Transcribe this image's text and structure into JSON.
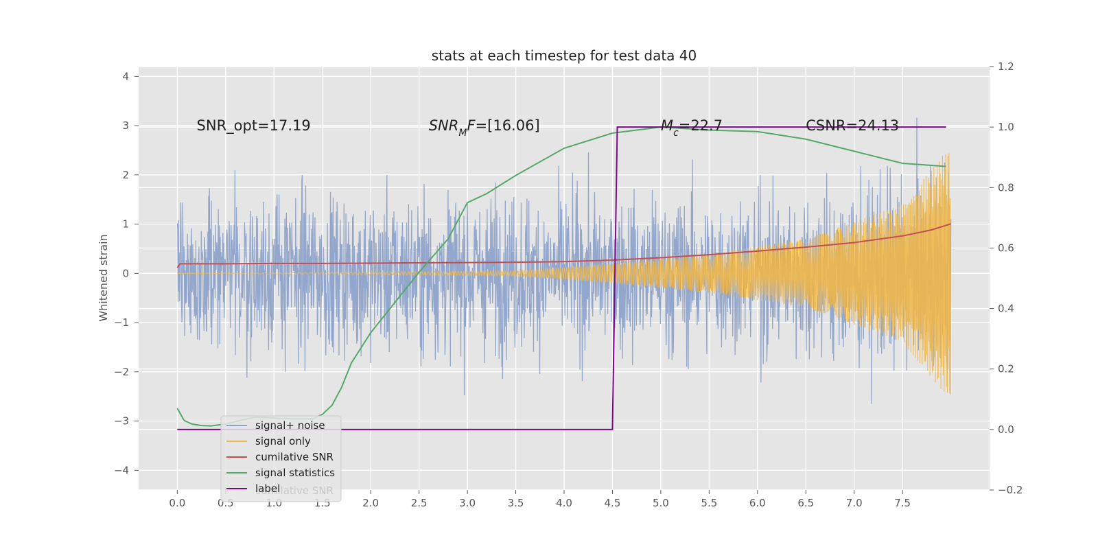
{
  "chart_data": {
    "type": "line",
    "title": "stats at each timestep for test data 40",
    "xlabel": "",
    "ylabel": "Whitened strain",
    "xlim": [
      -0.4,
      8.4
    ],
    "ylim": [
      -4.4,
      4.2
    ],
    "y2lim": [
      -0.2,
      1.2
    ],
    "xticks": [
      "0.0",
      "0.5",
      "1.0",
      "1.5",
      "2.0",
      "2.5",
      "3.0",
      "3.5",
      "4.0",
      "4.5",
      "5.0",
      "5.5",
      "6.0",
      "6.5",
      "7.0",
      "7.5"
    ],
    "yticks": [
      "4",
      "3",
      "2",
      "1",
      "0",
      "−1",
      "−2",
      "−3",
      "−4"
    ],
    "y2ticks": [
      "1.2",
      "1.0",
      "0.8",
      "0.6",
      "0.4",
      "0.2",
      "0.0",
      "−0.2"
    ],
    "grid": true,
    "legend_position": "lower-left",
    "annotations": [
      {
        "text": "SNR_opt=17.19",
        "x": 0.2,
        "y": 3.0
      },
      {
        "text": "SNR_MF=[16.06]",
        "x": 2.6,
        "y": 3.0
      },
      {
        "text": "M_c=22.7",
        "x": 5.0,
        "y": 3.0
      },
      {
        "text": "CSNR=24.13",
        "x": 6.5,
        "y": 3.0
      }
    ],
    "series": [
      {
        "name": "signal+ noise",
        "axis": "left",
        "color": "#8ea2c9",
        "kind": "noise",
        "x_start": 0.0,
        "x_end": 8.0,
        "amplitude": 1.1
      },
      {
        "name": "signal only",
        "axis": "left",
        "color": "#f0b74a",
        "kind": "chirp",
        "x_start": 0.0,
        "x_end": 8.0,
        "envelope": [
          [
            0.0,
            0.0
          ],
          [
            3.5,
            0.05
          ],
          [
            4.5,
            0.2
          ],
          [
            5.5,
            0.4
          ],
          [
            6.5,
            0.7
          ],
          [
            7.5,
            1.4
          ],
          [
            8.0,
            2.6
          ]
        ]
      },
      {
        "name": "cumilative SNR",
        "axis": "right",
        "color": "#c44e52",
        "points": [
          [
            0.0,
            0.535
          ],
          [
            0.03,
            0.548
          ],
          [
            0.5,
            0.548
          ],
          [
            1.0,
            0.549
          ],
          [
            1.5,
            0.549
          ],
          [
            2.0,
            0.55
          ],
          [
            2.5,
            0.551
          ],
          [
            3.0,
            0.552
          ],
          [
            3.5,
            0.553
          ],
          [
            4.0,
            0.555
          ],
          [
            4.5,
            0.56
          ],
          [
            5.0,
            0.568
          ],
          [
            5.5,
            0.578
          ],
          [
            6.0,
            0.59
          ],
          [
            6.5,
            0.603
          ],
          [
            7.0,
            0.618
          ],
          [
            7.5,
            0.64
          ],
          [
            7.8,
            0.66
          ],
          [
            8.0,
            0.68
          ]
        ]
      },
      {
        "name": "signal statistics",
        "axis": "right",
        "color": "#55a868",
        "points": [
          [
            0.0,
            0.07
          ],
          [
            0.07,
            0.03
          ],
          [
            0.15,
            0.018
          ],
          [
            0.25,
            0.013
          ],
          [
            0.35,
            0.012
          ],
          [
            0.5,
            0.018
          ],
          [
            0.65,
            0.03
          ],
          [
            0.8,
            0.04
          ],
          [
            0.9,
            0.04
          ],
          [
            1.0,
            0.038
          ],
          [
            1.2,
            0.035
          ],
          [
            1.4,
            0.035
          ],
          [
            1.5,
            0.05
          ],
          [
            1.6,
            0.08
          ],
          [
            1.7,
            0.14
          ],
          [
            1.8,
            0.22
          ],
          [
            2.0,
            0.32
          ],
          [
            2.2,
            0.4
          ],
          [
            2.5,
            0.52
          ],
          [
            2.8,
            0.63
          ],
          [
            3.0,
            0.75
          ],
          [
            3.2,
            0.78
          ],
          [
            3.5,
            0.84
          ],
          [
            4.0,
            0.93
          ],
          [
            4.5,
            0.98
          ],
          [
            5.0,
            1.0
          ],
          [
            5.5,
            0.99
          ],
          [
            6.0,
            0.985
          ],
          [
            6.5,
            0.96
          ],
          [
            7.0,
            0.92
          ],
          [
            7.5,
            0.88
          ],
          [
            7.95,
            0.87
          ]
        ]
      },
      {
        "name": "label",
        "axis": "right",
        "color": "#7b0a8a",
        "points": [
          [
            0.0,
            0.0
          ],
          [
            4.5,
            0.0
          ],
          [
            4.55,
            1.0
          ],
          [
            7.95,
            1.0
          ]
        ]
      }
    ]
  },
  "legend": {
    "hidden_text": "cumilative SNR"
  }
}
